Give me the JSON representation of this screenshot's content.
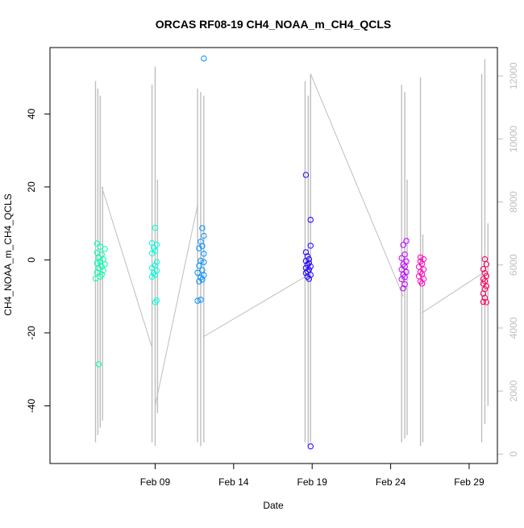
{
  "chart_data": {
    "type": "scatter",
    "title": "ORCAS RF08-19 CH4_NOAA_m_CH4_QCLS",
    "xlabel": "Date",
    "ylabel": "CH4_NOAA_m_CH4_QCLS",
    "x_ticks": [
      {
        "value": 9,
        "label": "Feb 09"
      },
      {
        "value": 14,
        "label": "Feb 14"
      },
      {
        "value": 19,
        "label": "Feb 19"
      },
      {
        "value": 24,
        "label": "Feb 24"
      },
      {
        "value": 29,
        "label": "Feb 29"
      }
    ],
    "xlim": [
      2.3,
      30.8
    ],
    "ylim": [
      -55.8,
      58.2
    ],
    "y_ticks": [
      -40,
      -20,
      0,
      20,
      40
    ],
    "y2lim": [
      -300,
      12900
    ],
    "y2_ticks": [
      0,
      2000,
      4000,
      6000,
      8000,
      10000,
      12000
    ],
    "right_axis_color": "#bebebe",
    "grid": false,
    "series": [
      {
        "color": "#00ffb0",
        "points": [
          [
            5.4,
            -28.6
          ],
          [
            5.3,
            4.5
          ],
          [
            5.5,
            3.6
          ],
          [
            5.8,
            3.0
          ],
          [
            5.3,
            2.0
          ],
          [
            5.6,
            1.5
          ],
          [
            5.4,
            0.6
          ],
          [
            5.7,
            0.1
          ],
          [
            5.5,
            -0.4
          ],
          [
            5.3,
            -0.9
          ],
          [
            5.8,
            -1.2
          ],
          [
            5.6,
            -1.8
          ],
          [
            5.4,
            -2.3
          ],
          [
            5.7,
            -2.9
          ],
          [
            5.3,
            -3.4
          ],
          [
            5.6,
            -4.0
          ],
          [
            5.5,
            -4.6
          ],
          [
            5.2,
            -5.1
          ]
        ]
      },
      {
        "color": "#00ffe0",
        "points": [
          [
            9.0,
            8.8
          ],
          [
            8.8,
            4.6
          ],
          [
            9.1,
            4.2
          ],
          [
            8.9,
            3.3
          ],
          [
            9.0,
            2.5
          ],
          [
            8.8,
            1.8
          ],
          [
            9.1,
            -0.6
          ],
          [
            9.0,
            -1.5
          ],
          [
            8.8,
            -2.2
          ],
          [
            9.1,
            -2.9
          ],
          [
            8.9,
            -3.6
          ],
          [
            9.0,
            -4.1
          ],
          [
            8.8,
            -4.6
          ],
          [
            9.1,
            -11.1
          ],
          [
            9.0,
            -11.6
          ]
        ]
      },
      {
        "color": "#0090ff",
        "points": [
          [
            12.1,
            55.2
          ],
          [
            12.0,
            8.7
          ],
          [
            12.1,
            6.6
          ],
          [
            11.9,
            5.0
          ],
          [
            12.0,
            3.8
          ],
          [
            11.8,
            3.2
          ],
          [
            12.1,
            1.7
          ],
          [
            11.9,
            -0.2
          ],
          [
            12.1,
            -0.6
          ],
          [
            11.8,
            -1.6
          ],
          [
            12.0,
            -2.8
          ],
          [
            11.7,
            -3.5
          ],
          [
            12.1,
            -4.2
          ],
          [
            11.9,
            -4.8
          ],
          [
            12.0,
            -5.4
          ],
          [
            11.8,
            -5.9
          ],
          [
            11.7,
            -11.2
          ],
          [
            11.9,
            -10.9
          ]
        ]
      },
      {
        "color": "#2000ff",
        "points": [
          [
            18.6,
            23.3
          ],
          [
            18.9,
            11.0
          ],
          [
            18.9,
            3.9
          ],
          [
            18.6,
            2.1
          ],
          [
            18.7,
            1.0
          ],
          [
            18.8,
            0.2
          ],
          [
            18.6,
            -0.3
          ],
          [
            18.8,
            -0.8
          ],
          [
            18.7,
            -1.3
          ],
          [
            18.9,
            -1.8
          ],
          [
            18.6,
            -2.2
          ],
          [
            18.8,
            -2.7
          ],
          [
            18.7,
            -3.1
          ],
          [
            18.6,
            -3.6
          ],
          [
            18.9,
            -4.1
          ],
          [
            18.7,
            -4.6
          ],
          [
            18.8,
            -5.2
          ],
          [
            18.9,
            -51.1
          ]
        ]
      },
      {
        "color": "#c000ff",
        "points": [
          [
            24.8,
            4.1
          ],
          [
            25.0,
            5.2
          ],
          [
            24.9,
            1.5
          ],
          [
            24.7,
            0.5
          ],
          [
            25.0,
            -0.4
          ],
          [
            24.8,
            -1.2
          ],
          [
            24.9,
            -1.8
          ],
          [
            24.7,
            -2.6
          ],
          [
            25.0,
            -3.3
          ],
          [
            24.8,
            -4.0
          ],
          [
            24.9,
            -4.7
          ],
          [
            24.7,
            -5.3
          ],
          [
            24.9,
            -6.7
          ],
          [
            24.8,
            -7.8
          ]
        ]
      },
      {
        "color": "#ff00c0",
        "points": [
          [
            25.9,
            0.7
          ],
          [
            26.1,
            0.2
          ],
          [
            25.9,
            -0.4
          ],
          [
            26.0,
            -1.1
          ],
          [
            25.8,
            -1.9
          ],
          [
            26.1,
            -2.6
          ],
          [
            25.9,
            -3.3
          ],
          [
            26.0,
            -3.9
          ],
          [
            25.8,
            -4.5
          ],
          [
            26.1,
            -5.2
          ],
          [
            25.9,
            -5.9
          ],
          [
            26.0,
            -6.5
          ]
        ]
      },
      {
        "color": "#ff0060",
        "points": [
          [
            30.0,
            0.2
          ],
          [
            30.1,
            -1.2
          ],
          [
            29.9,
            -2.5
          ],
          [
            30.0,
            -3.6
          ],
          [
            30.1,
            -4.4
          ],
          [
            29.9,
            -5.2
          ],
          [
            30.0,
            -5.8
          ],
          [
            29.9,
            -6.5
          ],
          [
            30.1,
            -7.2
          ],
          [
            30.0,
            -8.0
          ],
          [
            29.9,
            -9.2
          ],
          [
            30.0,
            -10.4
          ],
          [
            29.9,
            -11.5
          ],
          [
            30.1,
            -11.6
          ]
        ]
      }
    ],
    "background_series": {
      "color": "#bebebe",
      "spikes": [
        {
          "x": 5.2,
          "ymin": -50,
          "ymax": 49
        },
        {
          "x": 5.35,
          "ymin": -48,
          "ymax": 47
        },
        {
          "x": 5.5,
          "ymin": -46,
          "ymax": 45
        },
        {
          "x": 5.65,
          "ymin": -44,
          "ymax": 20
        },
        {
          "x": 8.8,
          "ymin": -50,
          "ymax": 48
        },
        {
          "x": 9.0,
          "ymin": -51,
          "ymax": 53
        },
        {
          "x": 9.15,
          "ymin": -42,
          "ymax": 22
        },
        {
          "x": 11.7,
          "ymin": -50,
          "ymax": 47
        },
        {
          "x": 11.9,
          "ymin": -51,
          "ymax": 46
        },
        {
          "x": 12.1,
          "ymin": -50,
          "ymax": 45
        },
        {
          "x": 18.55,
          "ymin": -50,
          "ymax": 49
        },
        {
          "x": 18.75,
          "ymin": -51,
          "ymax": 45
        },
        {
          "x": 18.9,
          "ymin": -50,
          "ymax": 51
        },
        {
          "x": 24.7,
          "ymin": -50,
          "ymax": 48
        },
        {
          "x": 24.9,
          "ymin": -49,
          "ymax": 46
        },
        {
          "x": 25.05,
          "ymin": -48,
          "ymax": 22
        },
        {
          "x": 25.9,
          "ymin": -51,
          "ymax": 50
        },
        {
          "x": 26.05,
          "ymin": -50,
          "ymax": 7
        },
        {
          "x": 29.8,
          "ymin": -50,
          "ymax": 51
        },
        {
          "x": 30.0,
          "ymin": -45,
          "ymax": 55
        },
        {
          "x": 30.2,
          "ymin": -40,
          "ymax": 10
        }
      ],
      "connectors": [
        [
          [
            5.6,
            20
          ],
          [
            8.8,
            -24
          ]
        ],
        [
          [
            9.0,
            -40
          ],
          [
            11.7,
            15
          ]
        ],
        [
          [
            12.1,
            -21
          ],
          [
            18.6,
            -4.5
          ]
        ],
        [
          [
            18.9,
            51
          ],
          [
            24.8,
            -10
          ]
        ],
        [
          [
            26.0,
            -14.5
          ],
          [
            29.9,
            -3.5
          ]
        ]
      ]
    }
  }
}
